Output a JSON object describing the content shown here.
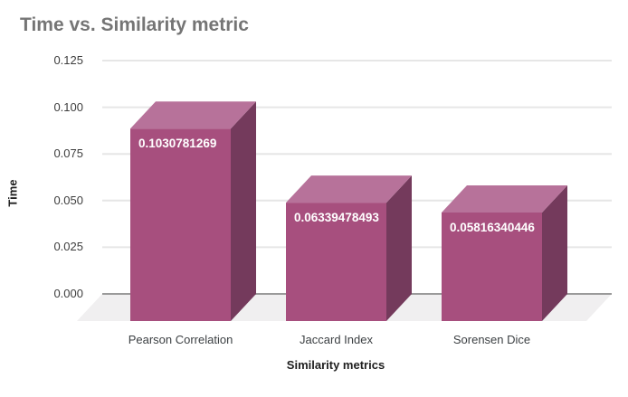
{
  "chart_data": {
    "type": "bar",
    "subtype": "3d-column",
    "title": "Time vs. Similarity metric",
    "xlabel": "Similarity metrics",
    "ylabel": "Time",
    "categories": [
      "Pearson Correlation",
      "Jaccard Index",
      "Sorensen Dice"
    ],
    "values": [
      0.1030781269,
      0.06339478493,
      0.05816340446
    ],
    "value_labels": [
      "0.1030781269",
      "0.06339478493",
      "0.05816340446"
    ],
    "ytick_values": [
      0,
      0.025,
      0.05,
      0.075,
      0.1,
      0.125
    ],
    "ytick_labels": [
      "0.000",
      "0.025",
      "0.050",
      "0.075",
      "0.100",
      "0.125"
    ],
    "ylim": [
      0,
      0.125
    ],
    "grid": true,
    "legend": "none",
    "colors": {
      "bar_front": "#a74f7e",
      "bar_top": "#b7729a",
      "bar_side": "#743a5c",
      "floor": "#f0eff0",
      "gridline": "#e6e6e6",
      "baseline": "#9a9a9a",
      "title_text": "#757575",
      "tick_text": "#3d3d3d",
      "axis_title_text": "#1f1f1f",
      "value_text": "#ffffff",
      "background": "#ffffff"
    }
  }
}
